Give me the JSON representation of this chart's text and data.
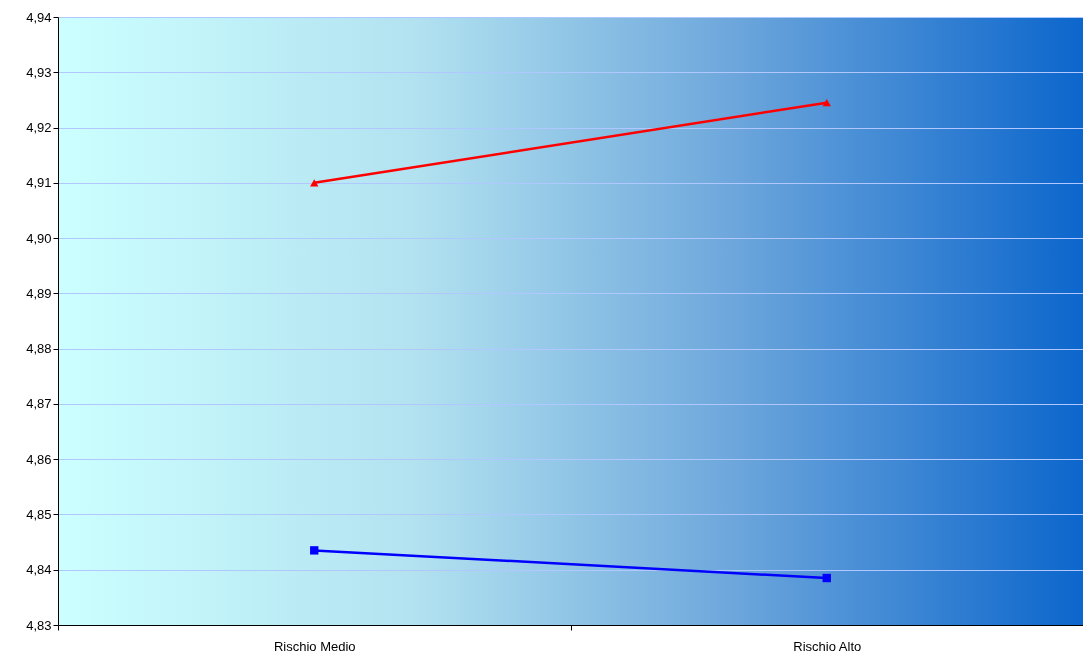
{
  "chart_data": {
    "type": "line",
    "categories": [
      "Rischio Medio",
      "Rischio Alto"
    ],
    "series": [
      {
        "color": "#ff0000",
        "marker": "triangle",
        "values": [
          4.91,
          4.9245
        ]
      },
      {
        "color": "#0000ff",
        "marker": "square",
        "values": [
          4.8435,
          4.8385
        ]
      }
    ],
    "ylim": [
      4.83,
      4.94
    ],
    "yticks": [
      {
        "value": 4.83,
        "label": "4,83"
      },
      {
        "value": 4.84,
        "label": "4,84"
      },
      {
        "value": 4.85,
        "label": "4,85"
      },
      {
        "value": 4.86,
        "label": "4,86"
      },
      {
        "value": 4.87,
        "label": "4,87"
      },
      {
        "value": 4.88,
        "label": "4,88"
      },
      {
        "value": 4.89,
        "label": "4,89"
      },
      {
        "value": 4.9,
        "label": "4,90"
      },
      {
        "value": 4.91,
        "label": "4,91"
      },
      {
        "value": 4.92,
        "label": "4,92"
      },
      {
        "value": 4.93,
        "label": "4,93"
      },
      {
        "value": 4.94,
        "label": "4,94"
      }
    ],
    "grid": "y"
  }
}
